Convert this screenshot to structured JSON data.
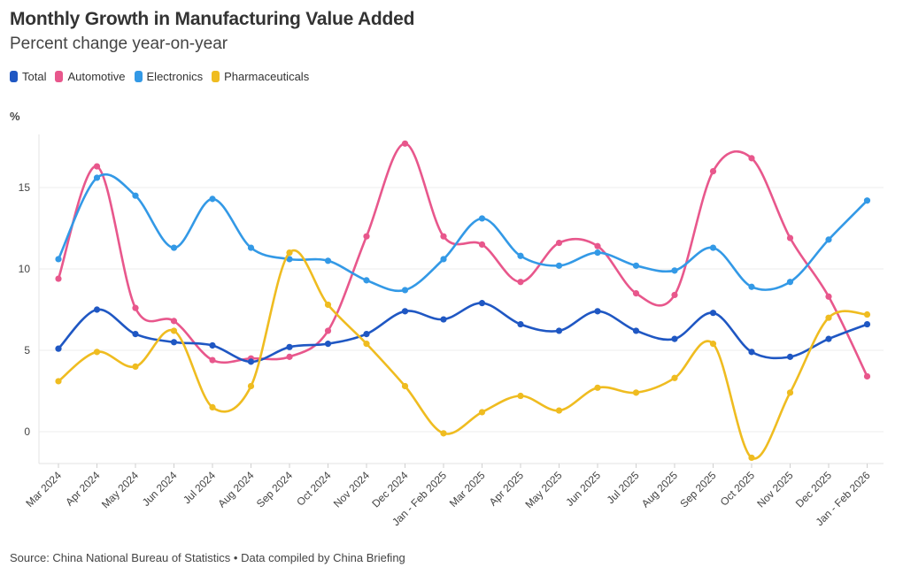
{
  "title": "Monthly Growth in Manufacturing Value Added",
  "subtitle": "Percent change year-on-year",
  "unit_label": "%",
  "source": "Source: China National Bureau of Statistics • Data compiled by China Briefing",
  "chart_data": {
    "type": "line",
    "title": "Monthly Growth in Manufacturing Value Added",
    "subtitle": "Percent change year-on-year",
    "xlabel": "",
    "ylabel": "%",
    "ylim": [
      -2,
      18.5
    ],
    "yticks": [
      0,
      5,
      10,
      15
    ],
    "grid": true,
    "legend_position": "top-left",
    "categories": [
      "Mar 2024",
      "Apr 2024",
      "May 2024",
      "Jun 2024",
      "Jul 2024",
      "Aug 2024",
      "Sep 2024",
      "Oct 2024",
      "Nov 2024",
      "Dec 2024",
      "Jan - Feb 2025",
      "Mar 2025",
      "Apr 2025",
      "May 2025",
      "Jun 2025",
      "Jul 2025",
      "Aug 2025",
      "Sep 2025",
      "Oct 2025",
      "Nov 2025",
      "Dec 2025",
      "Jan - Feb 2026"
    ],
    "series": [
      {
        "name": "Total",
        "color": "#1f57c3",
        "values": [
          5.1,
          7.5,
          6.0,
          5.5,
          5.3,
          4.3,
          5.2,
          5.4,
          6.0,
          7.4,
          6.9,
          7.9,
          6.6,
          6.2,
          7.4,
          6.2,
          5.7,
          7.3,
          4.9,
          4.6,
          5.7,
          6.6
        ]
      },
      {
        "name": "Automotive",
        "color": "#e8578c",
        "values": [
          9.4,
          16.3,
          7.6,
          6.8,
          4.4,
          4.5,
          4.6,
          6.2,
          12.0,
          17.7,
          12.0,
          11.5,
          9.2,
          11.6,
          11.4,
          8.5,
          8.4,
          16.0,
          16.8,
          11.9,
          8.3,
          3.4
        ]
      },
      {
        "name": "Electronics",
        "color": "#3399e6",
        "values": [
          10.6,
          15.6,
          14.5,
          11.3,
          14.3,
          11.3,
          10.6,
          10.5,
          9.3,
          8.7,
          10.6,
          13.1,
          10.8,
          10.2,
          11.0,
          10.2,
          9.9,
          11.3,
          8.9,
          9.2,
          11.8,
          14.2
        ]
      },
      {
        "name": "Pharmaceuticals",
        "color": "#efbc20",
        "values": [
          3.1,
          4.9,
          4.0,
          6.2,
          1.5,
          2.8,
          11.0,
          7.8,
          5.4,
          2.8,
          -0.1,
          1.2,
          2.2,
          1.3,
          2.7,
          2.4,
          3.3,
          5.4,
          -1.6,
          2.4,
          7.0,
          7.2
        ]
      }
    ]
  }
}
